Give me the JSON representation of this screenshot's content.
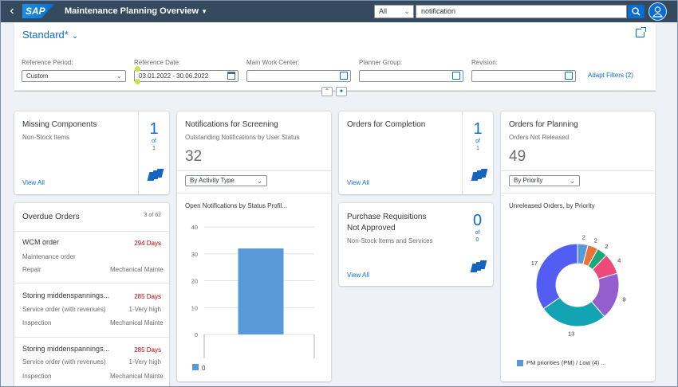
{
  "shell": {
    "title": "Maintenance Planning Overview",
    "logo_text": "SAP",
    "search_scope": "All",
    "search_value": "notification"
  },
  "header": {
    "variant": "Standard*",
    "filters": [
      {
        "label": "Reference Period:",
        "value": "Custom"
      },
      {
        "label": "Reference Date:",
        "value": "03.01.2022 - 30.06.2022"
      },
      {
        "label": "Main Work Center:",
        "value": ""
      },
      {
        "label": "Planner Group:",
        "value": ""
      },
      {
        "label": "Revision:",
        "value": ""
      }
    ],
    "adapt_filters": "Adapt Filters (2)"
  },
  "cards": {
    "missing": {
      "title": "Missing Components",
      "subtitle": "Non-Stock Items",
      "link": "View All",
      "count": "1",
      "of": "of",
      "total": "1"
    },
    "screening": {
      "title": "Notifications for Screening",
      "subtitle": "Outstanding Notifications by User Status",
      "kpi": "32",
      "select": "By Activity Type",
      "chart_title": "Open Notifications by Status Profil...",
      "legend": "0"
    },
    "completion": {
      "title": "Orders for Completion",
      "link": "View All",
      "count": "1",
      "of": "of",
      "total": "1"
    },
    "purchase": {
      "title_line1": "Purchase Requisitions",
      "title_line2": "Not Approved",
      "subtitle": "Non-Stock Items and Services",
      "link": "View All",
      "count": "0",
      "of": "of",
      "total": "0"
    },
    "planning": {
      "title": "Orders for Planning",
      "subtitle": "Orders Not Released",
      "kpi": "49",
      "select": "By Priority",
      "chart_title": "Unreleased Orders, by Priority",
      "legend": "PM priorities (PM) / Low (4)",
      "legend_more": "..."
    },
    "overdue": {
      "title": "Overdue Orders",
      "count": "3 of 62",
      "items": [
        {
          "name": "WCM order",
          "days": "294 Days",
          "type": "Maintenance order",
          "priority": "",
          "activity": "Repair",
          "center": "Mechanical Mainte"
        },
        {
          "name": "Storing middenspannings...",
          "days": "285 Days",
          "type": "Service order (with revenues)",
          "priority": "1-Very high",
          "activity": "Inspection",
          "center": "Mechanical Mainte"
        },
        {
          "name": "Storing middenspannings...",
          "days": "285 Days",
          "type": "Service order (with revenues)",
          "priority": "1-Very high",
          "activity": "Inspection",
          "center": "Mechanical Mainte"
        }
      ]
    }
  },
  "chart_data": [
    {
      "type": "bar",
      "title": "Open Notifications by Status Profil...",
      "categories": [
        ""
      ],
      "series": [
        {
          "name": "0",
          "values": [
            32
          ]
        }
      ],
      "ylim": [
        0,
        40
      ],
      "yticks": [
        0,
        10,
        20,
        30,
        40
      ],
      "color": "#5899da"
    },
    {
      "type": "pie",
      "title": "Unreleased Orders, by Priority",
      "donut": true,
      "values": [
        2,
        2,
        2,
        4,
        9,
        13,
        17
      ],
      "colors": [
        "#5899da",
        "#e8743b",
        "#19a979",
        "#ed4a7b",
        "#945ecf",
        "#13a4b4",
        "#525df4"
      ],
      "legend": [
        "PM priorities (PM) / Low (4)"
      ]
    }
  ]
}
